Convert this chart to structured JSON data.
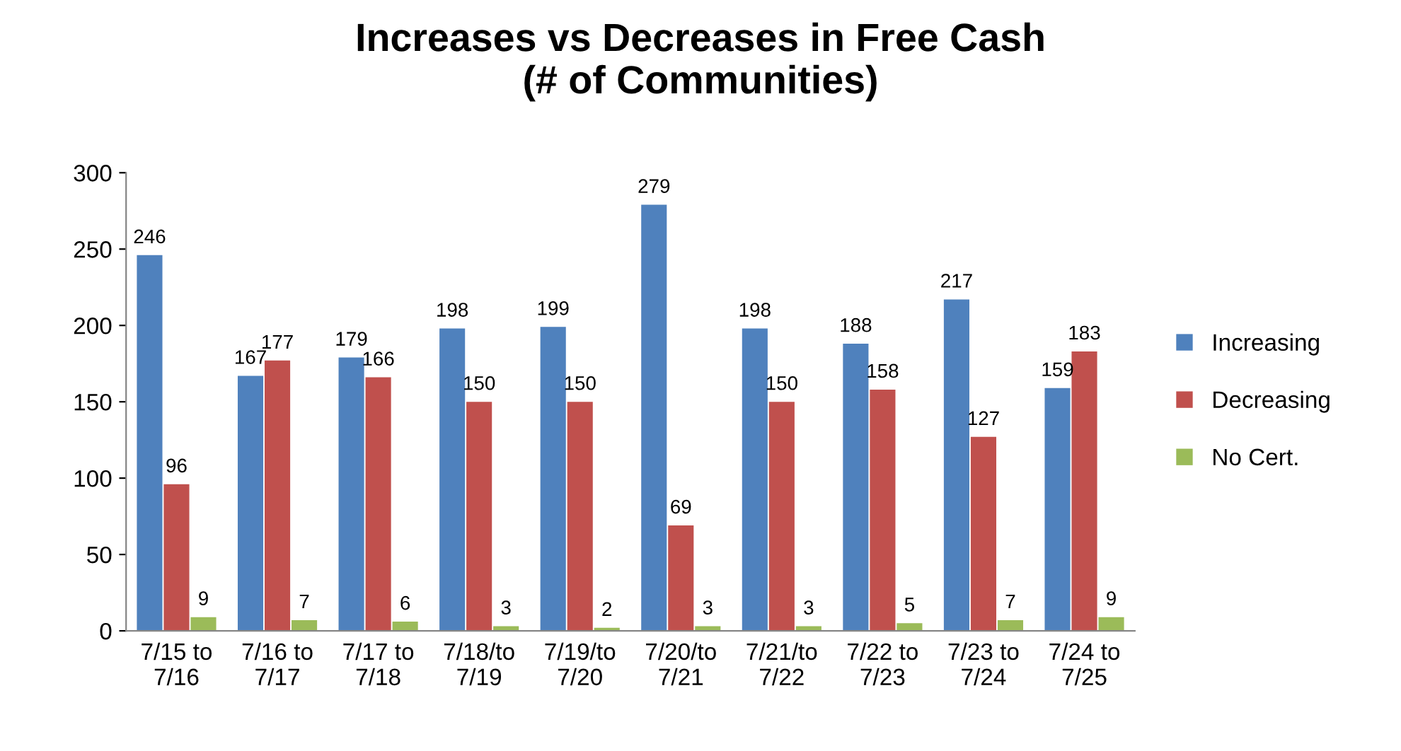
{
  "chart_data": {
    "type": "bar",
    "title": "Increases vs Decreases in Free Cash\n(# of Communities)",
    "categories": [
      "7/15 to\n7/16",
      "7/16 to\n7/17",
      "7/17 to\n7/18",
      "7/18/to\n7/19",
      "7/19/to\n7/20",
      "7/20/to\n7/21",
      "7/21/to\n7/22",
      "7/22 to\n7/23",
      "7/23 to\n7/24",
      "7/24 to\n7/25"
    ],
    "series": [
      {
        "name": "Increasing",
        "color": "#4f81bd",
        "values": [
          246,
          167,
          179,
          198,
          199,
          279,
          198,
          188,
          217,
          159
        ]
      },
      {
        "name": "Decreasing",
        "color": "#c0504d",
        "values": [
          96,
          177,
          166,
          150,
          150,
          69,
          150,
          158,
          127,
          183
        ]
      },
      {
        "name": "No Cert.",
        "color": "#9bbb59",
        "values": [
          9,
          7,
          6,
          3,
          2,
          3,
          3,
          5,
          7,
          9
        ]
      }
    ],
    "ylim": [
      0,
      300
    ],
    "yticks": [
      0,
      50,
      100,
      150,
      200,
      250,
      300
    ],
    "data_labels": true,
    "grid": false,
    "legend": "right"
  }
}
